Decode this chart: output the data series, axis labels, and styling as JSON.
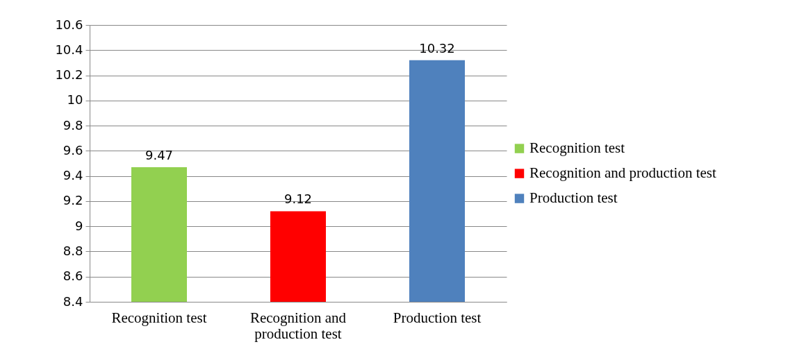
{
  "chart_data": {
    "type": "bar",
    "categories": [
      "Recognition test",
      "Recognition and production  test",
      "Production test"
    ],
    "series": [
      {
        "name": "Recognition test",
        "color": "#92d050",
        "values": [
          9.47,
          null,
          null
        ]
      },
      {
        "name": "Recognition and production  test",
        "color": "#ff0000",
        "values": [
          null,
          9.12,
          null
        ]
      },
      {
        "name": "Production test",
        "color": "#4f81bd",
        "values": [
          null,
          null,
          10.32
        ]
      }
    ],
    "ylim": [
      8.4,
      10.6
    ],
    "yticks": [
      8.4,
      8.6,
      8.8,
      9,
      9.2,
      9.4,
      9.6,
      9.8,
      10,
      10.2,
      10.4,
      10.6
    ],
    "grid": "y",
    "legend": "right",
    "data_labels": true
  }
}
